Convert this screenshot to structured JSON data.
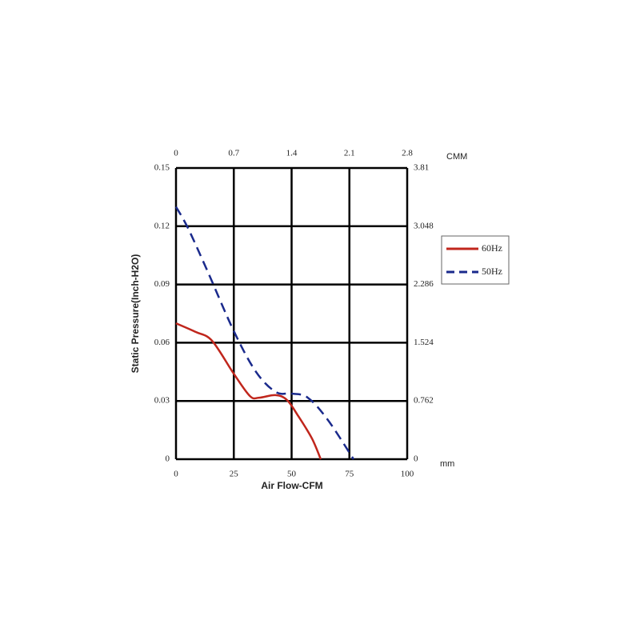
{
  "chart_data": {
    "type": "line",
    "x_label": "Air Flow-CFM",
    "y_label": "Static Pressure(Inch-H2O)",
    "x2_label": "CMM",
    "y2_label": "mm",
    "xlim": [
      0,
      100
    ],
    "xticks": [
      0,
      25,
      50,
      75,
      100
    ],
    "ylim": [
      0,
      0.15
    ],
    "yticks": [
      0,
      0.03,
      0.06,
      0.09,
      0.12,
      0.15
    ],
    "x2lim": [
      0,
      2.8
    ],
    "x2ticks": [
      0,
      0.7,
      1.4,
      2.1,
      2.8
    ],
    "y2lim": [
      0,
      3.81
    ],
    "y2ticks": [
      0,
      0.762,
      1.524,
      2.286,
      3.048,
      3.81
    ],
    "grid": true,
    "series": [
      {
        "name": "60Hz",
        "color": "#c0261c",
        "dash": false,
        "x": [
          0,
          8.6,
          15.6,
          25,
          32,
          36,
          43,
          48,
          53,
          58.8,
          62.6
        ],
        "values": [
          0.07,
          0.0655,
          0.061,
          0.044,
          0.0325,
          0.0317,
          0.033,
          0.0305,
          0.022,
          0.0107,
          0
        ]
      },
      {
        "name": "50Hz",
        "color": "#1a2a8c",
        "dash": true,
        "x": [
          0,
          5.2,
          13.8,
          25,
          34.6,
          43.2,
          50,
          57,
          65.7,
          76.8
        ],
        "values": [
          0.13,
          0.119,
          0.0964,
          0.066,
          0.045,
          0.0346,
          0.0338,
          0.0317,
          0.0202,
          0
        ]
      }
    ]
  }
}
